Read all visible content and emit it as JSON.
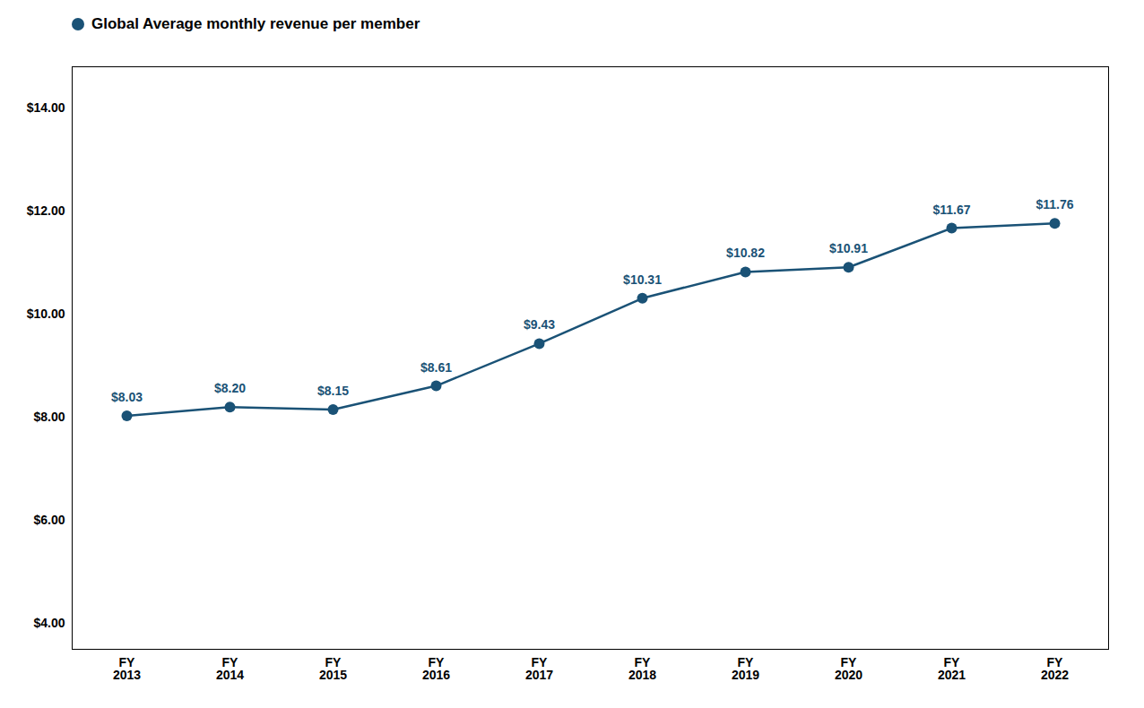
{
  "chart_data": {
    "type": "line",
    "categories": [
      "FY\n2013",
      "FY\n2014",
      "FY\n2015",
      "FY\n2016",
      "FY\n2017",
      "FY\n2018",
      "FY\n2019",
      "FY\n2020",
      "FY\n2021",
      "FY\n2022"
    ],
    "series": [
      {
        "name": "Global Average monthly revenue per member",
        "color": "#1a5276",
        "values": [
          8.03,
          8.2,
          8.15,
          8.61,
          9.43,
          10.31,
          10.82,
          10.91,
          11.67,
          11.76
        ],
        "value_labels": [
          "$8.03",
          "$8.20",
          "$8.15",
          "$8.61",
          "$9.43",
          "$10.31",
          "$10.82",
          "$10.91",
          "$11.67",
          "$11.76"
        ]
      }
    ],
    "ylim": [
      3.5,
      14.8
    ],
    "yticks": [
      {
        "value": 4.0,
        "label": "$4.00"
      },
      {
        "value": 6.0,
        "label": "$6.00"
      },
      {
        "value": 8.0,
        "label": "$8.00"
      },
      {
        "value": 10.0,
        "label": "$10.00"
      },
      {
        "value": 12.0,
        "label": "$12.00"
      },
      {
        "value": 14.0,
        "label": "$14.00"
      }
    ],
    "grid": false,
    "legend": "upper left",
    "data_labels": true,
    "marker": "circle"
  }
}
